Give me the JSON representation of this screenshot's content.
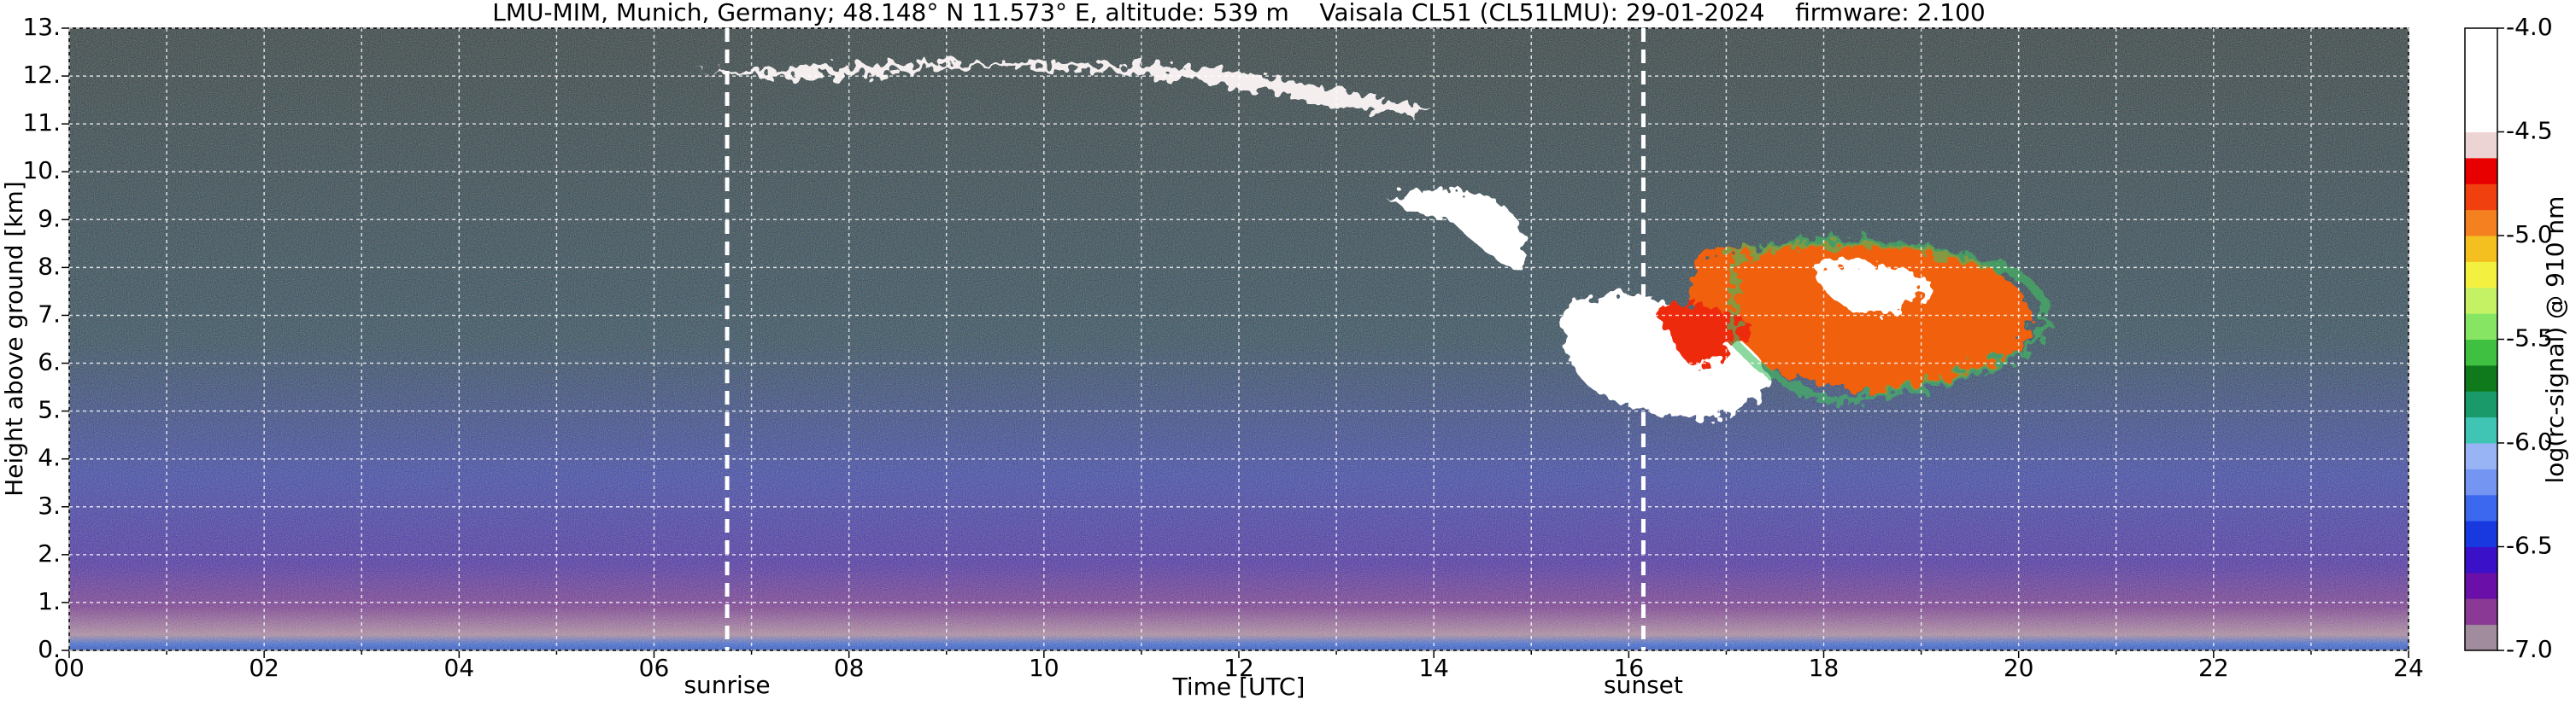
{
  "chart_data": {
    "type": "heatmap",
    "title": "LMU-MIM, Munich, Germany; 48.148° N 11.573° E, altitude: 539 m    Vaisala CL51 (CL51LMU): 29-01-2024    firmware: 2.100",
    "x_label": "Time [UTC]",
    "y_label": "Height above ground [km]",
    "colorbar_label": "log(rc-signal) @ 910 nm",
    "xlim": [
      0,
      24
    ],
    "xticks": [
      {
        "value": 0,
        "label": "00"
      },
      {
        "value": 2,
        "label": "02"
      },
      {
        "value": 4,
        "label": "04"
      },
      {
        "value": 6,
        "label": "06"
      },
      {
        "value": 8,
        "label": "08"
      },
      10,
      12,
      14,
      16,
      18,
      20,
      22,
      24
    ],
    "xminorticks": [
      1,
      3,
      5,
      7,
      9,
      11,
      13,
      15,
      17,
      19,
      21,
      23
    ],
    "ylim": [
      0,
      13
    ],
    "yticks": [
      {
        "value": 0,
        "label": "0."
      },
      {
        "value": 1,
        "label": "1."
      },
      {
        "value": 2,
        "label": "2."
      },
      {
        "value": 3,
        "label": "3."
      },
      {
        "value": 4,
        "label": "4."
      },
      {
        "value": 5,
        "label": "5."
      },
      {
        "value": 6,
        "label": "6."
      },
      {
        "value": 7,
        "label": "7."
      },
      {
        "value": 8,
        "label": "8."
      },
      {
        "value": 9,
        "label": "9."
      },
      {
        "value": 10,
        "label": "10."
      },
      {
        "value": 11,
        "label": "11."
      },
      {
        "value": 12,
        "label": "12."
      },
      {
        "value": 13,
        "label": "13."
      }
    ],
    "grid": true,
    "clim": [
      -7,
      -4
    ],
    "cticks": [
      {
        "value": -4,
        "label": "-4.0"
      },
      -4.5,
      {
        "value": -5,
        "label": "-5.0"
      },
      -5.5,
      {
        "value": -6,
        "label": "-6.0"
      },
      -6.5,
      {
        "value": -7,
        "label": "-7.0"
      }
    ],
    "colorscale": [
      "#a08c9c",
      "#8a3a94",
      "#6a10a8",
      "#3a10c8",
      "#1838e0",
      "#3c68f0",
      "#7496f2",
      "#98b4f4",
      "#40c4b4",
      "#1a9a6a",
      "#0e7a1c",
      "#40c040",
      "#86e664",
      "#c4f264",
      "#f4f040",
      "#f4c020",
      "#f48020",
      "#f04010",
      "#e80000",
      "#ecd4d4",
      "#ffffff",
      "#ffffff",
      "#ffffff",
      "#ffffff"
    ],
    "annotations": [
      {
        "text": "sunrise",
        "x": 6.75
      },
      {
        "text": "sunset",
        "x": 16.15
      }
    ]
  }
}
